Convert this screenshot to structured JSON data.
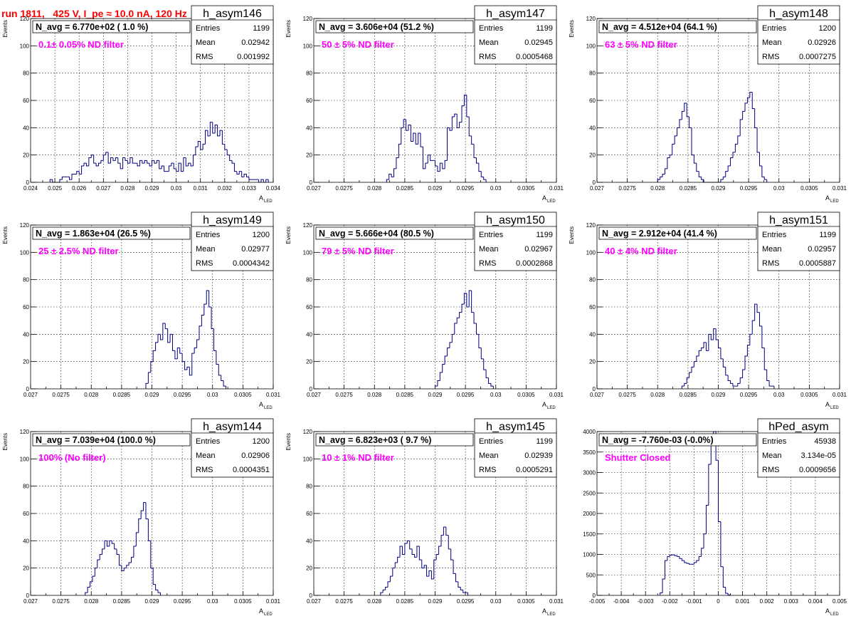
{
  "title": "run 1811,   425 V, I_pe ≈ 10.0 nA, 120 Hz",
  "colors": {
    "title": "#ff0000",
    "note": "#ff00ff",
    "histogram": "#000080",
    "grid": "#000000"
  },
  "chart_data": [
    {
      "type": "bar",
      "hist_name": "h_asym146",
      "navg": "N_avg = 6.770e+02 ( 1.0 %)",
      "note": "0.1± 0.05% ND filter",
      "stats": [
        [
          "Entries",
          "1199"
        ],
        [
          "Mean",
          "0.02942"
        ],
        [
          "RMS",
          "0.001992"
        ]
      ],
      "xlabel": "A",
      "xlabel_sub": "LED",
      "ylabel": "Events",
      "xlim": [
        0.024,
        0.034
      ],
      "ylim": [
        0,
        120
      ],
      "xticks": [
        "0.024",
        "0.025",
        "0.026",
        "0.027",
        "0.028",
        "0.029",
        "0.03",
        "0.031",
        "0.032",
        "0.033",
        "0.034"
      ],
      "yticks": [
        "0",
        "20",
        "40",
        "60",
        "80",
        "100",
        "120"
      ],
      "bin_start": 0.0248,
      "bin_width": 0.0001,
      "values": [
        2,
        0,
        0,
        0,
        2,
        4,
        4,
        4,
        2,
        6,
        6,
        8,
        6,
        12,
        14,
        12,
        18,
        20,
        14,
        12,
        14,
        16,
        20,
        22,
        14,
        18,
        16,
        18,
        14,
        10,
        18,
        16,
        14,
        18,
        14,
        14,
        12,
        16,
        14,
        16,
        14,
        12,
        16,
        14,
        16,
        10,
        12,
        8,
        8,
        12,
        14,
        10,
        8,
        14,
        8,
        18,
        12,
        14,
        12,
        20,
        26,
        30,
        24,
        28,
        38,
        34,
        44,
        36,
        42,
        34,
        38,
        28,
        24,
        20,
        16,
        14,
        8,
        6,
        8,
        4,
        6,
        4,
        2,
        2,
        2,
        2,
        0,
        2,
        0,
        2
      ]
    },
    {
      "type": "bar",
      "hist_name": "h_asym147",
      "navg": "N_avg = 3.606e+04 (51.2 %)",
      "note": "50 ± 5% ND filter",
      "stats": [
        [
          "Entries",
          "1199"
        ],
        [
          "Mean",
          "0.02945"
        ],
        [
          "RMS",
          "0.0005468"
        ]
      ],
      "xlabel": "A",
      "xlabel_sub": "LED",
      "ylabel": "Events",
      "xlim": [
        0.027,
        0.031
      ],
      "ylim": [
        0,
        120
      ],
      "xticks": [
        "0.027",
        "0.0275",
        "0.028",
        "0.0285",
        "0.029",
        "0.0295",
        "0.03",
        "0.0305",
        "0.031"
      ],
      "yticks": [
        "0",
        "20",
        "40",
        "60",
        "80",
        "100",
        "120"
      ],
      "bin_start": 0.0282,
      "bin_width": 4e-05,
      "values": [
        2,
        6,
        4,
        10,
        18,
        28,
        40,
        46,
        38,
        42,
        30,
        36,
        28,
        36,
        26,
        10,
        14,
        20,
        16,
        16,
        12,
        8,
        14,
        10,
        16,
        40,
        38,
        48,
        50,
        40,
        44,
        56,
        64,
        48,
        34,
        28,
        18,
        14,
        8,
        4,
        2
      ]
    },
    {
      "type": "bar",
      "hist_name": "h_asym148",
      "navg": "N_avg = 4.512e+04 (64.1 %)",
      "note": "63 ± 5% ND filter",
      "stats": [
        [
          "Entries",
          "1200"
        ],
        [
          "Mean",
          "0.02926"
        ],
        [
          "RMS",
          "0.0007275"
        ]
      ],
      "xlabel": "A",
      "xlabel_sub": "LED",
      "ylabel": "Events",
      "xlim": [
        0.027,
        0.031
      ],
      "ylim": [
        0,
        120
      ],
      "xticks": [
        "0.027",
        "0.0275",
        "0.028",
        "0.0285",
        "0.029",
        "0.0295",
        "0.03",
        "0.0305",
        "0.031"
      ],
      "yticks": [
        "0",
        "20",
        "40",
        "60",
        "80",
        "100",
        "120"
      ],
      "bin_start": 0.028,
      "bin_width": 4e-05,
      "values": [
        2,
        4,
        6,
        10,
        18,
        20,
        28,
        34,
        40,
        46,
        52,
        58,
        48,
        40,
        20,
        14,
        8,
        4,
        2,
        0,
        0,
        0,
        0,
        0,
        0,
        0,
        2,
        4,
        8,
        12,
        18,
        22,
        28,
        34,
        46,
        52,
        58,
        62,
        66,
        54,
        40,
        22,
        12,
        4,
        2
      ]
    },
    {
      "type": "bar",
      "hist_name": "h_asym149",
      "navg": "N_avg = 1.863e+04 (26.5 %)",
      "note": "25 ± 2.5% ND filter",
      "stats": [
        [
          "Entries",
          "1200"
        ],
        [
          "Mean",
          "0.02977"
        ],
        [
          "RMS",
          "0.0004342"
        ]
      ],
      "xlabel": "A",
      "xlabel_sub": "LED",
      "ylabel": "Events",
      "xlim": [
        0.027,
        0.031
      ],
      "ylim": [
        0,
        120
      ],
      "xticks": [
        "0.027",
        "0.0275",
        "0.028",
        "0.0285",
        "0.029",
        "0.0295",
        "0.03",
        "0.0305",
        "0.031"
      ],
      "yticks": [
        "0",
        "20",
        "40",
        "60",
        "80",
        "100",
        "120"
      ],
      "bin_start": 0.0289,
      "bin_width": 4e-05,
      "values": [
        4,
        12,
        20,
        28,
        34,
        40,
        36,
        48,
        44,
        34,
        40,
        28,
        22,
        30,
        26,
        20,
        14,
        16,
        10,
        26,
        30,
        36,
        46,
        54,
        62,
        72,
        60,
        44,
        28,
        18,
        10,
        6,
        2
      ]
    },
    {
      "type": "bar",
      "hist_name": "h_asym150",
      "navg": "N_avg = 5.666e+04 (80.5 %)",
      "note": "79 ± 5% ND filter",
      "stats": [
        [
          "Entries",
          "1199"
        ],
        [
          "Mean",
          "0.02967"
        ],
        [
          "RMS",
          "0.0002868"
        ]
      ],
      "xlabel": "A",
      "xlabel_sub": "LED",
      "ylabel": "Events",
      "xlim": [
        0.027,
        0.031
      ],
      "ylim": [
        0,
        120
      ],
      "xticks": [
        "0.027",
        "0.0275",
        "0.028",
        "0.0285",
        "0.029",
        "0.0295",
        "0.03",
        "0.0305",
        "0.031"
      ],
      "yticks": [
        "0",
        "20",
        "40",
        "60",
        "80",
        "100",
        "120"
      ],
      "bin_start": 0.029,
      "bin_width": 4e-05,
      "values": [
        2,
        6,
        12,
        18,
        24,
        30,
        34,
        40,
        48,
        52,
        56,
        62,
        70,
        60,
        72,
        56,
        48,
        40,
        30,
        22,
        14,
        8,
        4,
        2
      ]
    },
    {
      "type": "bar",
      "hist_name": "h_asym151",
      "navg": "N_avg = 2.912e+04 (41.4 %)",
      "note": "40 ± 4% ND filter",
      "stats": [
        [
          "Entries",
          "1199"
        ],
        [
          "Mean",
          "0.02957"
        ],
        [
          "RMS",
          "0.0005887"
        ]
      ],
      "xlabel": "A",
      "xlabel_sub": "LED",
      "ylabel": "Events",
      "xlim": [
        0.027,
        0.031
      ],
      "ylim": [
        0,
        120
      ],
      "xticks": [
        "0.027",
        "0.0275",
        "0.028",
        "0.0285",
        "0.029",
        "0.0295",
        "0.03",
        "0.0305",
        "0.031"
      ],
      "yticks": [
        "0",
        "20",
        "40",
        "60",
        "80",
        "100",
        "120"
      ],
      "bin_start": 0.0284,
      "bin_width": 4e-05,
      "values": [
        2,
        4,
        8,
        12,
        16,
        20,
        24,
        28,
        30,
        34,
        28,
        40,
        36,
        44,
        36,
        30,
        22,
        16,
        10,
        6,
        4,
        2,
        2,
        4,
        8,
        14,
        24,
        32,
        40,
        50,
        62,
        56,
        46,
        30,
        14,
        6,
        2,
        2
      ]
    },
    {
      "type": "bar",
      "hist_name": "h_asym144",
      "navg": "N_avg = 7.039e+04 (100.0 %)",
      "note": "100% (No filter)",
      "stats": [
        [
          "Entries",
          "1200"
        ],
        [
          "Mean",
          "0.02906"
        ],
        [
          "RMS",
          "0.0004351"
        ]
      ],
      "xlabel": "A",
      "xlabel_sub": "LED",
      "ylabel": "Events",
      "xlim": [
        0.027,
        0.031
      ],
      "ylim": [
        0,
        120
      ],
      "xticks": [
        "0.027",
        "0.0275",
        "0.028",
        "0.0285",
        "0.029",
        "0.0295",
        "0.03",
        "0.0305",
        "0.031"
      ],
      "yticks": [
        "0",
        "20",
        "40",
        "60",
        "80",
        "100",
        "120"
      ],
      "bin_start": 0.0279,
      "bin_width": 4e-05,
      "values": [
        2,
        6,
        10,
        14,
        20,
        26,
        30,
        34,
        40,
        36,
        40,
        38,
        34,
        30,
        22,
        18,
        20,
        22,
        24,
        28,
        36,
        46,
        56,
        62,
        68,
        56,
        40,
        20,
        8,
        4,
        2
      ]
    },
    {
      "type": "bar",
      "hist_name": "h_asym145",
      "navg": "N_avg = 6.823e+03 ( 9.7 %)",
      "note": "10 ± 1% ND filter",
      "stats": [
        [
          "Entries",
          "1199"
        ],
        [
          "Mean",
          "0.02939"
        ],
        [
          "RMS",
          "0.0005291"
        ]
      ],
      "xlabel": "A",
      "xlabel_sub": "LED",
      "ylabel": "Events",
      "xlim": [
        0.027,
        0.031
      ],
      "ylim": [
        0,
        120
      ],
      "xticks": [
        "0.027",
        "0.0275",
        "0.028",
        "0.0285",
        "0.029",
        "0.0295",
        "0.03",
        "0.0305",
        "0.031"
      ],
      "yticks": [
        "0",
        "20",
        "40",
        "60",
        "80",
        "100",
        "120"
      ],
      "bin_start": 0.0281,
      "bin_width": 4e-05,
      "values": [
        2,
        4,
        6,
        10,
        14,
        20,
        24,
        28,
        36,
        30,
        38,
        40,
        34,
        30,
        28,
        36,
        26,
        20,
        22,
        14,
        18,
        12,
        26,
        30,
        36,
        44,
        50,
        44,
        34,
        26,
        16,
        10,
        6,
        4,
        2,
        2
      ]
    },
    {
      "type": "bar",
      "hist_name": "hPed_asym",
      "navg": "N_avg = -7.760e-03 (-0.0%)",
      "note": "Shutter Closed",
      "stats": [
        [
          "Entries",
          "45938"
        ],
        [
          "Mean",
          "3.134e-05"
        ],
        [
          "RMS",
          "0.0009656"
        ]
      ],
      "xlabel": "A",
      "xlabel_sub": "LED",
      "ylabel": "",
      "xlim": [
        -0.005,
        0.005
      ],
      "ylim": [
        0,
        4000
      ],
      "xticks": [
        "-0.005",
        "-0.004",
        "-0.003",
        "-0.002",
        "-0.001",
        "0",
        "0.001",
        "0.002",
        "0.003",
        "0.004",
        "0.005"
      ],
      "yticks": [
        "0",
        "500",
        "1000",
        "1500",
        "2000",
        "2500",
        "3000",
        "3500",
        "4000"
      ],
      "bin_start": -0.0024,
      "bin_width": 0.0001,
      "values": [
        60,
        400,
        850,
        950,
        980,
        990,
        970,
        950,
        900,
        850,
        800,
        780,
        760,
        760,
        800,
        850,
        950,
        1150,
        1500,
        2200,
        3200,
        3900,
        4000,
        3300,
        1800,
        700,
        200,
        50,
        10
      ]
    }
  ]
}
